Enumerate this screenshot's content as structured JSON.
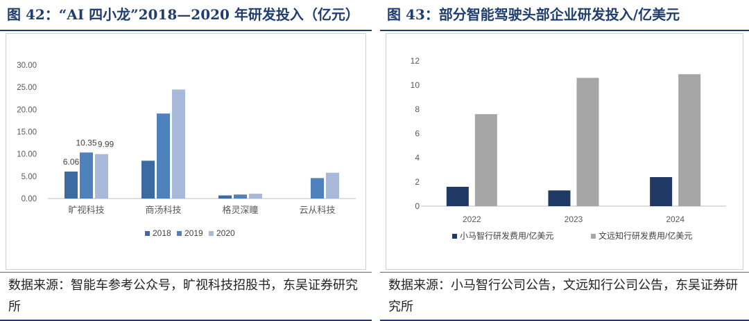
{
  "left": {
    "title": "图 42：“AI 四小龙”2018—2020 年研发投入（亿元）",
    "source": "数据来源：智能车参考公众号，旷视科技招股书，东吴证券研究所"
  },
  "right": {
    "title": "图 43：部分智能驾驶头部企业研发投入/亿美元",
    "source": "数据来源：小马智行公司公告，文远知行公司公告，东吴证券研究所"
  },
  "chart_data": [
    {
      "type": "bar",
      "title": "“AI 四小龙”2018—2020 年研发投入（亿元）",
      "xlabel": "",
      "ylabel": "",
      "categories": [
        "旷视科技",
        "商汤科技",
        "格灵深瞳",
        "云从科技"
      ],
      "series": [
        {
          "name": "2018",
          "color": "#3d6aa0",
          "values": [
            6.06,
            8.5,
            0.7,
            null
          ]
        },
        {
          "name": "2019",
          "color": "#4f81bd",
          "values": [
            10.35,
            19.1,
            0.9,
            4.6
          ]
        },
        {
          "name": "2020",
          "color": "#a8b9da",
          "values": [
            9.99,
            24.5,
            1.1,
            5.8
          ]
        }
      ],
      "data_labels": [
        "6.06",
        "10.35",
        "9.99"
      ],
      "yticks": [
        "0.00",
        "5.00",
        "10.00",
        "15.00",
        "20.00",
        "25.00",
        "30.00"
      ],
      "ylim": [
        0,
        30
      ],
      "grid": false,
      "legend_position": "bottom"
    },
    {
      "type": "bar",
      "title": "部分智能驾驶头部企业研发投入/亿美元",
      "xlabel": "",
      "ylabel": "",
      "categories": [
        "2022",
        "2023",
        "2024"
      ],
      "series": [
        {
          "name": "小马智行研发费用/亿美元",
          "color": "#1f3864",
          "values": [
            1.6,
            1.3,
            2.4
          ]
        },
        {
          "name": "文远知行研发费用/亿美元",
          "color": "#a6a6a6",
          "values": [
            7.6,
            10.6,
            10.9
          ]
        }
      ],
      "yticks": [
        "0",
        "2",
        "4",
        "6",
        "8",
        "10",
        "12"
      ],
      "ylim": [
        0,
        12
      ],
      "grid": false,
      "legend_position": "bottom"
    }
  ]
}
